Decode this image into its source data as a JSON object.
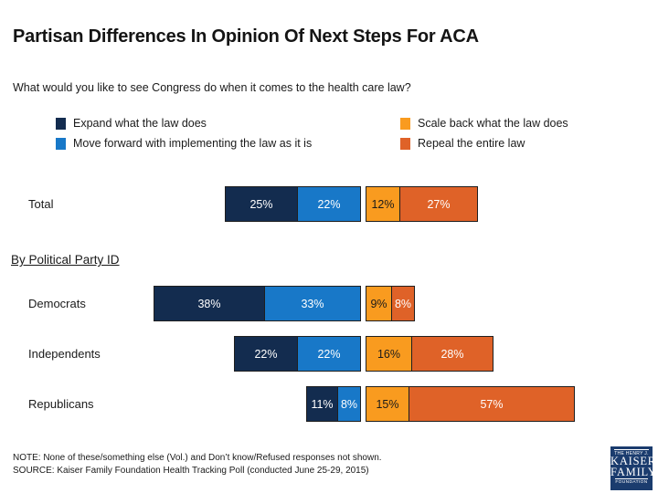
{
  "title": "Partisan Differences In Opinion Of Next Steps For ACA",
  "subtitle": "What would you like to see Congress do when it comes to the health care law?",
  "section_header": "By Political Party ID",
  "colors": {
    "expand": "#132C4F",
    "move_forward": "#1878C8",
    "scale_back": "#F99B1F",
    "repeal": "#DF6228",
    "segment_border": "#1F1F1F",
    "text": "#1A1A1A"
  },
  "legend": [
    {
      "label": "Expand what the law does",
      "color": "#132C4F"
    },
    {
      "label": "Move forward with implementing the law as it is",
      "color": "#1878C8"
    },
    {
      "label": "Scale back what the law does",
      "color": "#F99B1F"
    },
    {
      "label": "Repeal the entire law",
      "color": "#DF6228"
    }
  ],
  "chart_data": {
    "type": "bar",
    "orientation": "horizontal-diverging-stacked",
    "unit": "%",
    "value_suffix": "%",
    "categories": [
      "Total",
      "Democrats",
      "Independents",
      "Republicans"
    ],
    "series": [
      {
        "name": "Expand what the law does",
        "side": "left",
        "color": "#132C4F",
        "label_color": "#FFFFFF",
        "values": [
          25,
          38,
          22,
          11
        ]
      },
      {
        "name": "Move forward with implementing the law as it is",
        "side": "left",
        "color": "#1878C8",
        "label_color": "#FFFFFF",
        "values": [
          22,
          33,
          22,
          8
        ]
      },
      {
        "name": "Scale back what the law does",
        "side": "right",
        "color": "#F99B1F",
        "label_color": "#1A1A1A",
        "values": [
          12,
          9,
          16,
          15
        ]
      },
      {
        "name": "Repeal the entire law",
        "side": "right",
        "color": "#DF6228",
        "label_color": "#FFFFFF",
        "values": [
          27,
          8,
          28,
          57
        ]
      }
    ],
    "legend_position": "top",
    "grid": false,
    "axis_labels_shown": false
  },
  "note": "NOTE: None of these/something else (Vol.) and Don’t know/Refused responses not shown.",
  "source": "SOURCE: Kaiser Family Foundation Health Tracking Poll (conducted June 25-29, 2015)",
  "logo": {
    "line1": "THE HENRY J.",
    "line2": "KAISER",
    "line3": "FAMILY",
    "line4": "FOUNDATION",
    "bg": "#1B3C6E"
  }
}
